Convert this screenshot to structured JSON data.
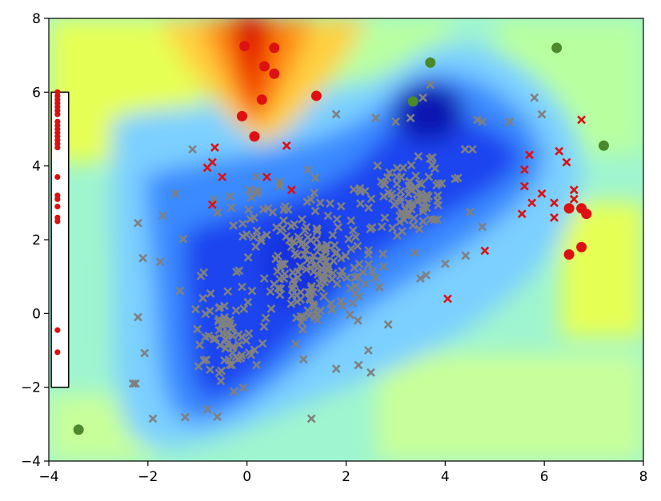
{
  "chart_data": {
    "type": "scatter",
    "title": "",
    "xlabel": "",
    "ylabel": "",
    "xlim": [
      -4,
      8
    ],
    "ylim": [
      -4,
      8
    ],
    "x_ticks": [
      "−4",
      "−2",
      "0",
      "2",
      "4",
      "6",
      "8"
    ],
    "y_ticks": [
      "−4",
      "−2",
      "0",
      "2",
      "4",
      "6",
      "8"
    ],
    "grid": false,
    "background": "filled contour density map (jet colormap)",
    "inset_box": {
      "x_range": [
        -3.95,
        -3.6
      ],
      "y_range": [
        -2,
        6
      ]
    },
    "series": [
      {
        "marker": "circle",
        "color": "#dd1111",
        "points": [
          [
            -0.05,
            7.25
          ],
          [
            0.55,
            7.2
          ],
          [
            0.35,
            6.7
          ],
          [
            0.55,
            6.5
          ],
          [
            0.3,
            5.8
          ],
          [
            -0.1,
            5.35
          ],
          [
            0.15,
            4.8
          ],
          [
            1.4,
            5.9
          ],
          [
            6.5,
            2.85
          ],
          [
            6.75,
            2.85
          ],
          [
            6.85,
            2.7
          ],
          [
            6.5,
            1.6
          ],
          [
            6.75,
            1.8
          ]
        ]
      },
      {
        "marker": "circle",
        "color": "#4a8a2a",
        "points": [
          [
            3.7,
            6.8
          ],
          [
            3.35,
            5.75
          ],
          [
            6.25,
            7.2
          ],
          [
            7.2,
            4.55
          ],
          [
            -3.4,
            -3.15
          ]
        ]
      },
      {
        "marker": "x",
        "color": "#dd1111",
        "points": [
          [
            -0.65,
            4.5
          ],
          [
            -0.7,
            4.1
          ],
          [
            -0.8,
            3.95
          ],
          [
            -0.5,
            3.7
          ],
          [
            0.8,
            4.55
          ],
          [
            0.4,
            3.7
          ],
          [
            0.9,
            3.35
          ],
          [
            -0.7,
            2.95
          ],
          [
            5.7,
            4.3
          ],
          [
            5.6,
            3.9
          ],
          [
            5.6,
            3.45
          ],
          [
            5.75,
            3.0
          ],
          [
            5.95,
            3.25
          ],
          [
            6.3,
            4.4
          ],
          [
            6.45,
            4.1
          ],
          [
            6.6,
            3.35
          ],
          [
            6.6,
            3.1
          ],
          [
            6.2,
            3.0
          ],
          [
            6.2,
            2.6
          ],
          [
            5.55,
            2.7
          ],
          [
            6.75,
            5.25
          ],
          [
            4.8,
            1.7
          ],
          [
            4.05,
            0.4
          ]
        ]
      },
      {
        "marker": "x",
        "color": "#808080",
        "points": [
          [
            -1.9,
            -2.85
          ],
          [
            -2.3,
            -1.9
          ],
          [
            -2.25,
            -1.9
          ],
          [
            -2.2,
            -0.1
          ],
          [
            -2.1,
            1.5
          ],
          [
            -1.75,
            1.4
          ],
          [
            -2.2,
            2.45
          ],
          [
            -1.7,
            2.65
          ],
          [
            -1.45,
            3.25
          ],
          [
            -1.1,
            4.45
          ],
          [
            1.3,
            -2.85
          ],
          [
            -0.6,
            -2.8
          ],
          [
            -0.8,
            -2.6
          ],
          [
            2.85,
            -0.3
          ],
          [
            2.45,
            -1.0
          ],
          [
            2.25,
            -1.4
          ],
          [
            2.5,
            -1.6
          ],
          [
            1.8,
            -1.5
          ],
          [
            3.7,
            6.2
          ],
          [
            3.55,
            5.85
          ],
          [
            3.3,
            5.3
          ],
          [
            3.0,
            5.2
          ],
          [
            2.6,
            5.3
          ],
          [
            1.8,
            5.4
          ],
          [
            4.65,
            5.25
          ],
          [
            4.75,
            5.2
          ],
          [
            5.3,
            5.2
          ],
          [
            5.8,
            5.85
          ],
          [
            5.95,
            5.4
          ],
          [
            4.4,
            4.45
          ],
          [
            4.55,
            4.45
          ],
          [
            4.2,
            3.65
          ],
          [
            3.85,
            3.2
          ],
          [
            4.5,
            2.75
          ],
          [
            4.75,
            2.35
          ],
          [
            4.0,
            1.35
          ],
          [
            3.5,
            0.95
          ],
          [
            1.5,
            1.8
          ]
        ]
      }
    ],
    "cloud": {
      "marker": "x",
      "color": "#808080",
      "count": 380,
      "seed": 7,
      "clusters": [
        {
          "cx": 1.4,
          "cy": 1.2,
          "sx": 1.1,
          "sy": 1.5,
          "n": 180
        },
        {
          "cx": -0.4,
          "cy": -0.6,
          "sx": 0.7,
          "sy": 1.4,
          "n": 80
        },
        {
          "cx": 3.2,
          "cy": 3.2,
          "sx": 0.9,
          "sy": 0.9,
          "n": 90
        },
        {
          "cx": 0.4,
          "cy": 2.6,
          "sx": 0.8,
          "sy": 0.9,
          "n": 30
        }
      ]
    },
    "inset_dots": {
      "marker": "circle",
      "color": "#dd1111",
      "y": [
        6.0,
        5.9,
        5.8,
        5.7,
        5.6,
        5.5,
        5.4,
        5.2,
        5.1,
        5.0,
        4.9,
        4.8,
        4.7,
        4.6,
        4.5,
        3.7,
        3.2,
        3.1,
        2.9,
        2.6,
        2.5,
        -0.45,
        -1.05
      ]
    }
  }
}
